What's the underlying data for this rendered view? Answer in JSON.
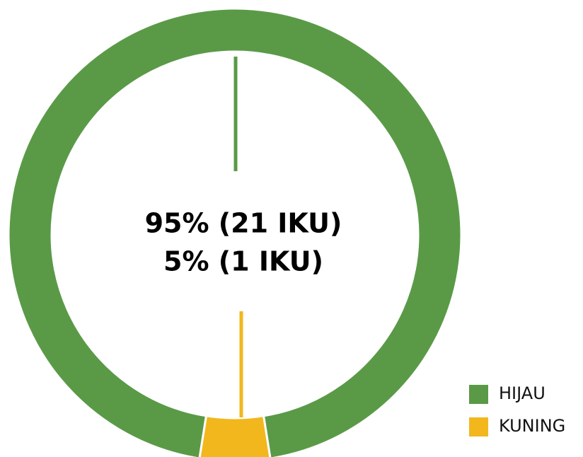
{
  "chart_data": {
    "type": "donut",
    "categories": [
      "HIJAU",
      "KUNING"
    ],
    "values": [
      95,
      5
    ],
    "value_labels": [
      "95% (21 IKU)",
      "5% (1 IKU)"
    ],
    "colors": [
      "#5a9a47",
      "#f2b71d"
    ],
    "legend": "bottom-right"
  }
}
